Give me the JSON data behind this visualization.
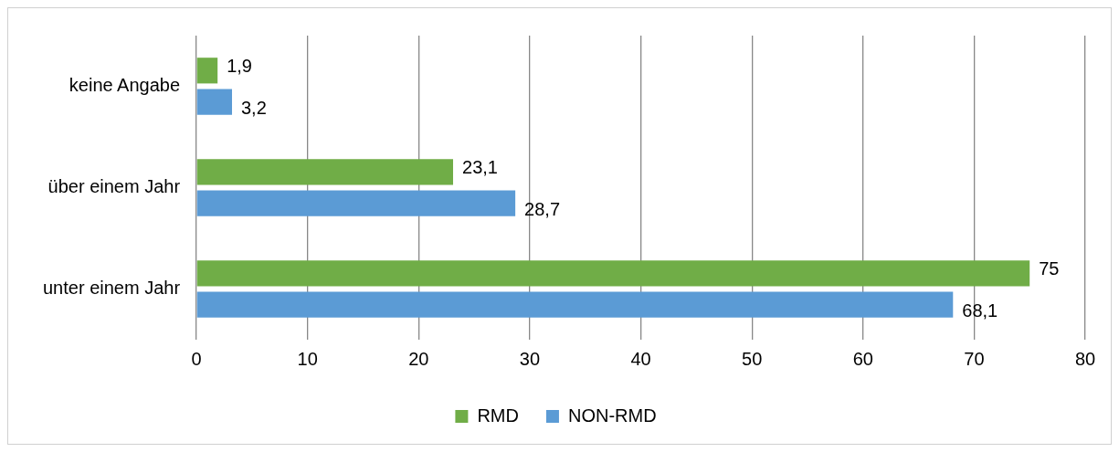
{
  "chart_data": {
    "type": "bar",
    "orientation": "horizontal",
    "categories": [
      "keine Angabe",
      "über einem Jahr",
      "unter einem Jahr"
    ],
    "series": [
      {
        "name": "RMD",
        "color": "#70ad47",
        "values": [
          1.9,
          23.1,
          75
        ],
        "value_labels": [
          "1,9",
          "23,1",
          "75"
        ]
      },
      {
        "name": "NON-RMD",
        "color": "#5b9bd5",
        "values": [
          3.2,
          28.7,
          68.1
        ],
        "value_labels": [
          "3,2",
          "28,7",
          "68,1"
        ]
      }
    ],
    "xlim": [
      0,
      80
    ],
    "xticks": [
      0,
      10,
      20,
      30,
      40,
      50,
      60,
      70,
      80
    ],
    "grid": "x",
    "legend": "bottom"
  }
}
